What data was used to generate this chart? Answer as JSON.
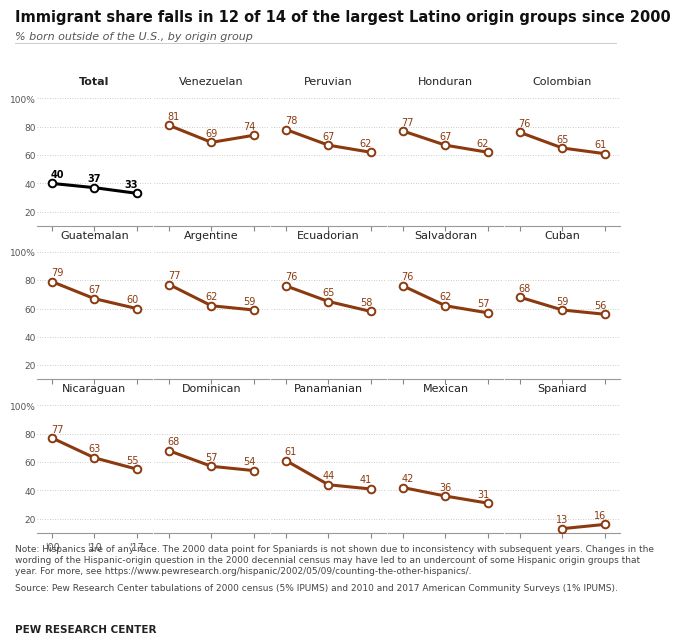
{
  "title": "Immigrant share falls in 12 of 14 of the largest Latino origin groups since 2000",
  "subtitle": "% born outside of the U.S., by origin group",
  "note": "Note: Hispanics are of any race. The 2000 data point for Spaniards is not shown due to inconsistency with subsequent years. Changes in the\nwording of the Hispanic-origin question in the 2000 decennial census may have led to an undercount of some Hispanic origin groups that\nyear. For more, see https://www.pewresearch.org/hispanic/2002/05/09/counting-the-other-hispanics/.",
  "source": "Source: Pew Research Center tabulations of 2000 census (5% IPUMS) and 2010 and 2017 American Community Surveys (1% IPUMS).",
  "brand": "PEW RESEARCH CENTER",
  "year_labels": [
    "'00",
    "'10",
    "'17"
  ],
  "panels": [
    {
      "name": "Total",
      "values": [
        40,
        37,
        33
      ],
      "color": "#000000",
      "bold": true,
      "has_2000": true
    },
    {
      "name": "Venezuelan",
      "values": [
        81,
        69,
        74
      ],
      "color": "#8B3A0F",
      "bold": false,
      "has_2000": true
    },
    {
      "name": "Peruvian",
      "values": [
        78,
        67,
        62
      ],
      "color": "#8B3A0F",
      "bold": false,
      "has_2000": true
    },
    {
      "name": "Honduran",
      "values": [
        77,
        67,
        62
      ],
      "color": "#8B3A0F",
      "bold": false,
      "has_2000": true
    },
    {
      "name": "Colombian",
      "values": [
        76,
        65,
        61
      ],
      "color": "#8B3A0F",
      "bold": false,
      "has_2000": true
    },
    {
      "name": "Guatemalan",
      "values": [
        79,
        67,
        60
      ],
      "color": "#8B3A0F",
      "bold": false,
      "has_2000": true
    },
    {
      "name": "Argentine",
      "values": [
        77,
        62,
        59
      ],
      "color": "#8B3A0F",
      "bold": false,
      "has_2000": true
    },
    {
      "name": "Ecuadorian",
      "values": [
        76,
        65,
        58
      ],
      "color": "#8B3A0F",
      "bold": false,
      "has_2000": true
    },
    {
      "name": "Salvadoran",
      "values": [
        76,
        62,
        57
      ],
      "color": "#8B3A0F",
      "bold": false,
      "has_2000": true
    },
    {
      "name": "Cuban",
      "values": [
        68,
        59,
        56
      ],
      "color": "#8B3A0F",
      "bold": false,
      "has_2000": true
    },
    {
      "name": "Nicaraguan",
      "values": [
        77,
        63,
        55
      ],
      "color": "#8B3A0F",
      "bold": false,
      "has_2000": true
    },
    {
      "name": "Dominican",
      "values": [
        68,
        57,
        54
      ],
      "color": "#8B3A0F",
      "bold": false,
      "has_2000": true
    },
    {
      "name": "Panamanian",
      "values": [
        61,
        44,
        41
      ],
      "color": "#8B3A0F",
      "bold": false,
      "has_2000": true
    },
    {
      "name": "Mexican",
      "values": [
        42,
        36,
        31
      ],
      "color": "#8B3A0F",
      "bold": false,
      "has_2000": true
    },
    {
      "name": "Spaniard",
      "values": [
        null,
        13,
        16
      ],
      "color": "#8B3A0F",
      "bold": false,
      "has_2000": false
    }
  ],
  "ylim": [
    10,
    107
  ],
  "yticks": [
    20,
    40,
    60,
    80,
    100
  ],
  "ytick_labels": [
    "20",
    "40",
    "60",
    "80",
    "100%"
  ],
  "grid_color": "#bbbbbb",
  "bg_color": "#ffffff",
  "line_width": 2.2,
  "marker_size": 5.5
}
